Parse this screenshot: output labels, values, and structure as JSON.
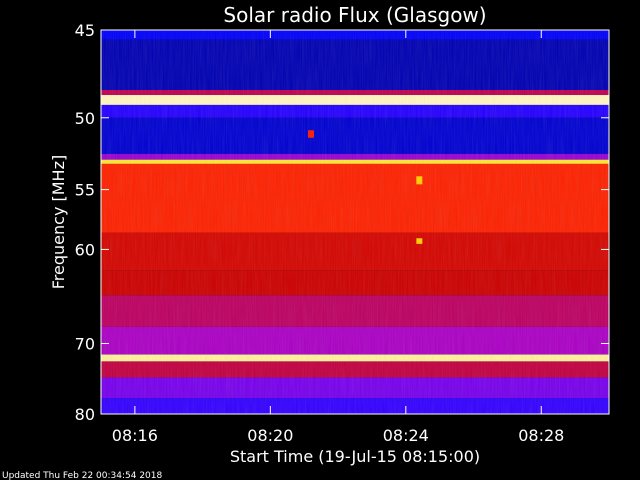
{
  "chart_data": {
    "type": "heatmap",
    "title": "Solar radio Flux (Glasgow)",
    "xlabel": "Start Time (19-Jul-15 08:15:00)",
    "ylabel": "Frequency [MHz]",
    "x_ticks": [
      "08:16",
      "08:20",
      "08:24",
      "08:28"
    ],
    "x_tick_minutes": [
      16,
      20,
      24,
      28
    ],
    "xlim_minutes": [
      15,
      30
    ],
    "y_ticks": [
      45,
      50,
      55,
      60,
      70,
      80
    ],
    "ylim": [
      45,
      80
    ],
    "y_scale": "reciprocal",
    "grid": false,
    "colormap": [
      "#000080",
      "#0000ff",
      "#5500ff",
      "#aa00cc",
      "#cc0000",
      "#ff2200",
      "#ff8800",
      "#ffdd00",
      "#ffffff"
    ],
    "bands": [
      {
        "from": 45.0,
        "to": 45.5,
        "level": 0.12
      },
      {
        "from": 45.5,
        "to": 48.3,
        "level": 0.05
      },
      {
        "from": 48.3,
        "to": 48.6,
        "level": 0.45
      },
      {
        "from": 48.6,
        "to": 49.2,
        "level": 0.97
      },
      {
        "from": 49.2,
        "to": 50.0,
        "level": 0.18
      },
      {
        "from": 50.0,
        "to": 52.4,
        "level": 0.08
      },
      {
        "from": 52.4,
        "to": 52.8,
        "level": 0.35
      },
      {
        "from": 52.8,
        "to": 53.1,
        "level": 0.9
      },
      {
        "from": 53.1,
        "to": 58.5,
        "level": 0.62
      },
      {
        "from": 58.5,
        "to": 62.0,
        "level": 0.52
      },
      {
        "from": 62.0,
        "to": 64.5,
        "level": 0.5
      },
      {
        "from": 64.5,
        "to": 68.0,
        "level": 0.44
      },
      {
        "from": 68.0,
        "to": 71.4,
        "level": 0.38
      },
      {
        "from": 71.4,
        "to": 72.3,
        "level": 0.95
      },
      {
        "from": 72.3,
        "to": 74.5,
        "level": 0.46
      },
      {
        "from": 74.5,
        "to": 77.5,
        "level": 0.3
      },
      {
        "from": 77.5,
        "to": 80.0,
        "level": 0.2
      }
    ],
    "bursts": [
      {
        "minute": 24.4,
        "from": 54.0,
        "to": 54.6,
        "level": 0.85
      },
      {
        "minute": 24.4,
        "from": 59.0,
        "to": 59.5,
        "level": 0.85
      },
      {
        "minute": 21.2,
        "from": 50.8,
        "to": 51.3,
        "level": 0.6
      }
    ]
  },
  "footer": {
    "updated": "Updated Thu Feb 22 00:34:54 2018"
  }
}
